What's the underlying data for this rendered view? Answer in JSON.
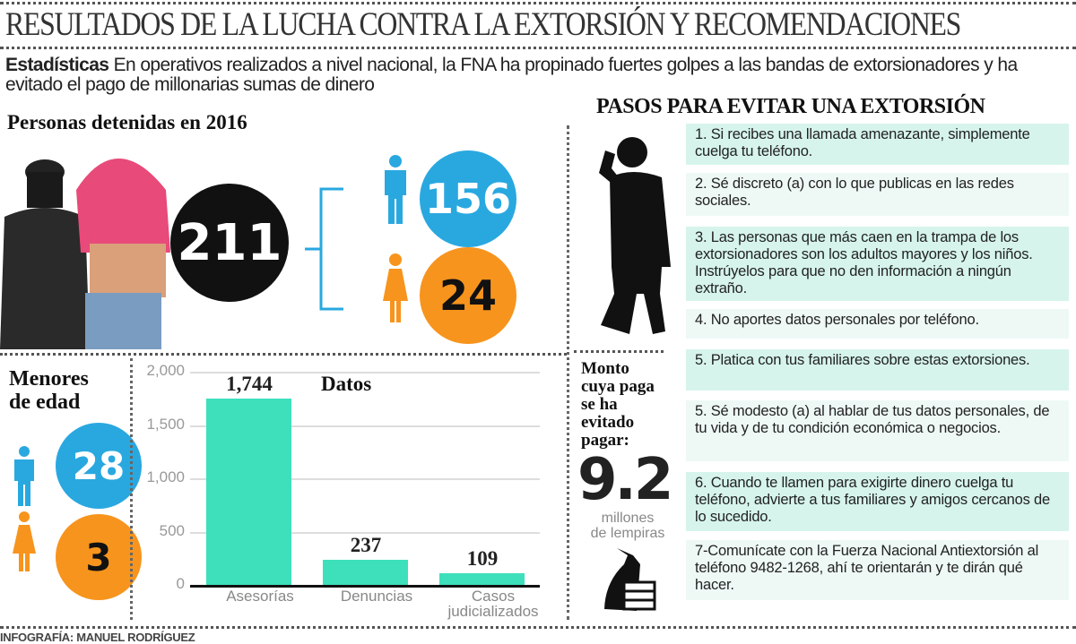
{
  "title": "RESULTADOS DE LA LUCHA CONTRA LA EXTORSIÓN Y RECOMENDACIONES",
  "intro": {
    "lead": "Estadísticas",
    "text": "En operativos realizados a nivel nacional, la FNA ha propinado fuertes golpes a las bandas de extorsionadores y ha evitado el pago de millonarias sumas de dinero"
  },
  "detenidos": {
    "heading": "Personas detenidas  en 2016",
    "total": "211",
    "hombres": "156",
    "mujeres": "24"
  },
  "menores": {
    "heading_1": "Menores",
    "heading_2": "de edad",
    "hombres": "28",
    "mujeres": "3"
  },
  "monto": {
    "label_lines": [
      "Monto",
      "cuya paga",
      "se ha",
      "evitado",
      "pagar:"
    ],
    "value": "9.2",
    "unit_1": "millones",
    "unit_2": "de lempiras"
  },
  "pasos": {
    "heading": "PASOS PARA EVITAR UNA EXTORSIÓN",
    "items": [
      "1. Si recibes una llamada amenazante, simplemente cuelga tu teléfono.",
      "2. Sé discreto (a) con lo que publicas en las redes sociales.",
      "3. Las personas que más caen en la trampa de los extorsionadores son los adultos mayores y los niños. Instrúyelos para que no den información a ningún extraño.",
      "4. No aportes datos personales por teléfono.",
      "5. Platica con tus familiares sobre estas extorsiones.",
      "5. Sé modesto (a) al hablar de tus datos personales, de tu vida y de tu condición económica o negocios.",
      "6. Cuando te llamen para exigirte dinero cuelga tu teléfono, advierte a tus familiares y amigos cercanos de lo sucedido.",
      "7-Comunícate con la Fuerza Nacional Antiextorsión al teléfono 9482-1268, ahí te orientarán y te dirán qué hacer."
    ]
  },
  "chart_data": {
    "type": "bar",
    "title": "Datos",
    "categories": [
      "Asesorías",
      "Denuncias",
      "Casos judicializados"
    ],
    "values": [
      1744,
      237,
      109
    ],
    "value_labels": [
      "1,744",
      "237",
      "109"
    ],
    "yticks": [
      "2,000",
      "1,500",
      "1,000",
      "500",
      "0"
    ],
    "ylim": [
      0,
      2000
    ],
    "grid": true,
    "bar_color": "#3de0bb"
  },
  "credit": "INFOGRAFÍA: MANUEL RODRÍGUEZ",
  "colors": {
    "blue": "#29a8e0",
    "orange": "#f7941d",
    "black": "#111111",
    "mint": "#d6f4ec"
  }
}
